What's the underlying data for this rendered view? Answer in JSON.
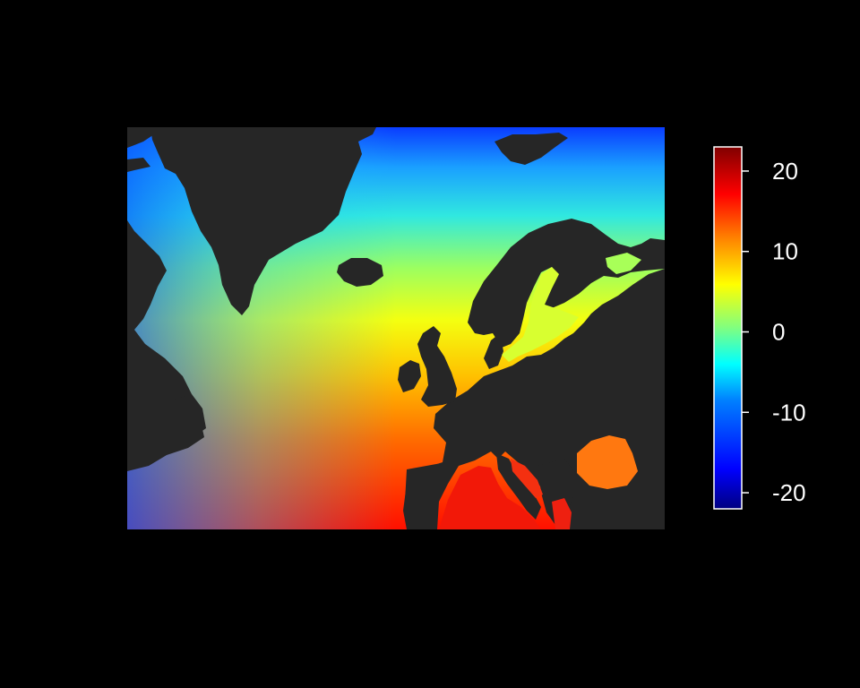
{
  "map": {
    "type": "raster",
    "colors": {
      "background": "#000000",
      "land": "#262626",
      "colorbar_border": "#ffffff",
      "tick_text": "#ffffff"
    },
    "color_scale": [
      "#000080",
      "#0000ff",
      "#0080ff",
      "#00ffff",
      "#80ff80",
      "#ffff00",
      "#ff8000",
      "#ff0000",
      "#800000"
    ]
  },
  "chart_data": {
    "type": "heatmap",
    "title": "",
    "xlabel": "",
    "ylabel": "",
    "colorbar": {
      "range": [
        -22,
        23
      ],
      "ticks": [
        20,
        10,
        0,
        -10,
        -20
      ],
      "tick_labels": [
        "20",
        "10",
        "0",
        "-10",
        "-20"
      ]
    }
  }
}
